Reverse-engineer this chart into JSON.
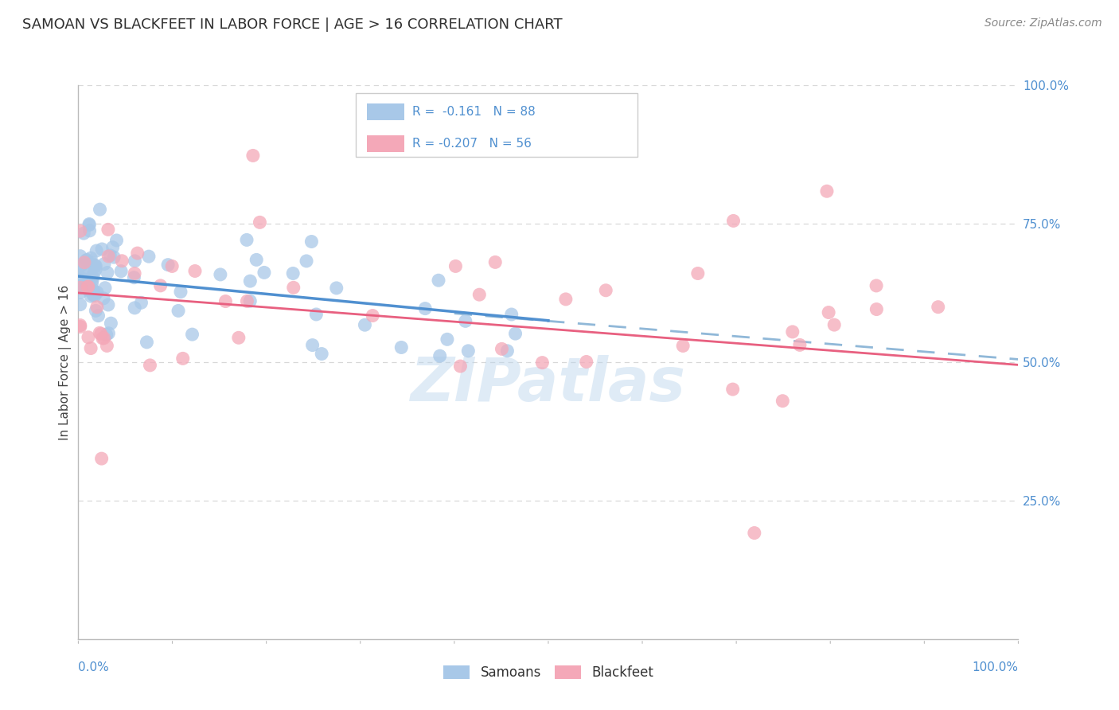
{
  "title": "SAMOAN VS BLACKFEET IN LABOR FORCE | AGE > 16 CORRELATION CHART",
  "source": "Source: ZipAtlas.com",
  "ylabel": "In Labor Force | Age > 16",
  "watermark": "ZIPatlas",
  "blue_color": "#a8c8e8",
  "pink_color": "#f4a8b8",
  "blue_line_color": "#5090d0",
  "pink_line_color": "#e86080",
  "dashed_line_color": "#90b8d8",
  "right_label_color": "#5090d0",
  "title_color": "#303030",
  "background_color": "#ffffff",
  "grid_color": "#d8d8d8",
  "spine_color": "#bbbbbb",
  "xlim": [
    0.0,
    1.0
  ],
  "ylim": [
    0.0,
    1.0
  ],
  "yticks_right": [
    0.25,
    0.5,
    0.75,
    1.0
  ],
  "ytick_labels_right": [
    "25.0%",
    "50.0%",
    "75.0%",
    "100.0%"
  ],
  "blue_R": -0.161,
  "blue_N": 88,
  "pink_R": -0.207,
  "pink_N": 56,
  "blue_line_x0": 0.0,
  "blue_line_y0": 0.655,
  "blue_line_x1": 0.5,
  "blue_line_y1": 0.575,
  "pink_line_x0": 0.0,
  "pink_line_y0": 0.625,
  "pink_line_x1": 1.0,
  "pink_line_y1": 0.495,
  "dashed_line_x0": 0.4,
  "dashed_line_y0": 0.588,
  "dashed_line_x1": 1.0,
  "dashed_line_y1": 0.505
}
